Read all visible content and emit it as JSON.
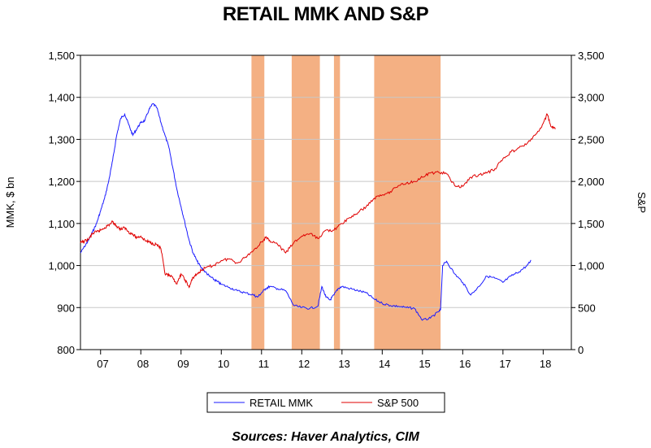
{
  "chart_data": {
    "type": "line",
    "title": "RETAIL MMK AND S&P",
    "source": "Sources:  Haver Analytics, CIM",
    "left_axis": {
      "label": "MMK, $ bn",
      "range": [
        800,
        1500
      ],
      "ticks": [
        "800",
        "900",
        "1,000",
        "1,100",
        "1,200",
        "1,300",
        "1,400",
        "1,500"
      ]
    },
    "right_axis": {
      "label": "S&P",
      "range": [
        0,
        3500
      ],
      "ticks": [
        "0",
        "500",
        "1,000",
        "1,500",
        "2,000",
        "2,500",
        "3,000",
        "3,500"
      ]
    },
    "x_axis": {
      "range": [
        2006.5,
        2018.7
      ],
      "tick_labels": [
        "07",
        "08",
        "09",
        "10",
        "11",
        "12",
        "13",
        "14",
        "15",
        "16",
        "17",
        "18"
      ]
    },
    "grid": "horizontal",
    "legend_position": "bottom",
    "shaded_periods": [
      [
        2010.75,
        2011.07
      ],
      [
        2011.75,
        2012.45
      ],
      [
        2012.8,
        2012.95
      ],
      [
        2013.8,
        2015.45
      ]
    ],
    "colors": {
      "mmk": "#1a1aff",
      "sp": "#e00000",
      "shade": "#f4b083",
      "grid": "#c8c8c8"
    },
    "series": [
      {
        "name": "RETAIL MMK",
        "axis": "left",
        "x": [
          2006.5,
          2006.6,
          2006.7,
          2006.8,
          2006.9,
          2007.0,
          2007.1,
          2007.2,
          2007.3,
          2007.4,
          2007.5,
          2007.6,
          2007.7,
          2007.8,
          2007.9,
          2008.0,
          2008.1,
          2008.2,
          2008.3,
          2008.4,
          2008.5,
          2008.6,
          2008.7,
          2008.8,
          2008.9,
          2009.0,
          2009.1,
          2009.2,
          2009.3,
          2009.4,
          2009.5,
          2009.6,
          2009.7,
          2009.8,
          2009.9,
          2010.0,
          2010.2,
          2010.4,
          2010.6,
          2010.8,
          2010.9,
          2011.0,
          2011.1,
          2011.2,
          2011.4,
          2011.6,
          2011.8,
          2012.0,
          2012.2,
          2012.4,
          2012.5,
          2012.6,
          2012.7,
          2012.8,
          2012.9,
          2013.0,
          2013.2,
          2013.4,
          2013.6,
          2013.8,
          2014.0,
          2014.2,
          2014.4,
          2014.6,
          2014.8,
          2015.0,
          2015.2,
          2015.4,
          2015.45,
          2015.5,
          2015.6,
          2015.8,
          2016.0,
          2016.2,
          2016.4,
          2016.6,
          2016.8,
          2017.0,
          2017.2,
          2017.4,
          2017.6,
          2017.7
        ],
        "values": [
          1030,
          1045,
          1060,
          1080,
          1100,
          1130,
          1160,
          1200,
          1250,
          1310,
          1350,
          1360,
          1335,
          1310,
          1325,
          1340,
          1345,
          1370,
          1385,
          1375,
          1340,
          1310,
          1280,
          1230,
          1180,
          1140,
          1100,
          1060,
          1030,
          1010,
          995,
          985,
          975,
          968,
          962,
          955,
          948,
          940,
          935,
          930,
          925,
          935,
          945,
          950,
          945,
          940,
          905,
          900,
          898,
          903,
          950,
          925,
          918,
          930,
          945,
          950,
          945,
          940,
          935,
          920,
          910,
          905,
          903,
          900,
          898,
          870,
          875,
          890,
          895,
          1000,
          1010,
          980,
          960,
          930,
          950,
          975,
          970,
          960,
          975,
          985,
          1000,
          1012
        ]
      },
      {
        "name": "S&P 500",
        "axis": "right",
        "x": [
          2006.5,
          2006.6,
          2006.7,
          2006.8,
          2006.9,
          2007.0,
          2007.1,
          2007.2,
          2007.3,
          2007.4,
          2007.5,
          2007.6,
          2007.7,
          2007.8,
          2007.9,
          2008.0,
          2008.1,
          2008.2,
          2008.3,
          2008.4,
          2008.5,
          2008.6,
          2008.7,
          2008.8,
          2008.9,
          2009.0,
          2009.1,
          2009.2,
          2009.3,
          2009.4,
          2009.5,
          2009.6,
          2009.8,
          2010.0,
          2010.2,
          2010.4,
          2010.6,
          2010.8,
          2011.0,
          2011.1,
          2011.2,
          2011.4,
          2011.6,
          2011.8,
          2012.0,
          2012.2,
          2012.4,
          2012.6,
          2012.8,
          2013.0,
          2013.2,
          2013.4,
          2013.6,
          2013.8,
          2014.0,
          2014.2,
          2014.4,
          2014.6,
          2014.8,
          2015.0,
          2015.2,
          2015.4,
          2015.6,
          2015.8,
          2016.0,
          2016.2,
          2016.4,
          2016.6,
          2016.8,
          2017.0,
          2017.2,
          2017.4,
          2017.6,
          2017.8,
          2017.9,
          2018.0,
          2018.1,
          2018.2,
          2018.3
        ],
        "values": [
          1270,
          1290,
          1310,
          1380,
          1400,
          1420,
          1450,
          1480,
          1520,
          1470,
          1430,
          1450,
          1400,
          1370,
          1330,
          1350,
          1300,
          1280,
          1260,
          1250,
          1200,
          900,
          880,
          850,
          780,
          900,
          830,
          740,
          860,
          900,
          940,
          970,
          1000,
          1060,
          1080,
          1030,
          1100,
          1180,
          1280,
          1330,
          1300,
          1250,
          1150,
          1270,
          1350,
          1380,
          1320,
          1420,
          1420,
          1500,
          1570,
          1630,
          1700,
          1800,
          1840,
          1880,
          1950,
          1980,
          2000,
          2050,
          2100,
          2110,
          2090,
          1950,
          1940,
          2050,
          2080,
          2100,
          2150,
          2270,
          2350,
          2400,
          2450,
          2550,
          2600,
          2690,
          2800,
          2650,
          2620
        ]
      }
    ]
  },
  "legend": {
    "items": [
      {
        "label": "RETAIL MMK",
        "color": "#1a1aff"
      },
      {
        "label": "S&P 500",
        "color": "#e00000"
      }
    ]
  }
}
